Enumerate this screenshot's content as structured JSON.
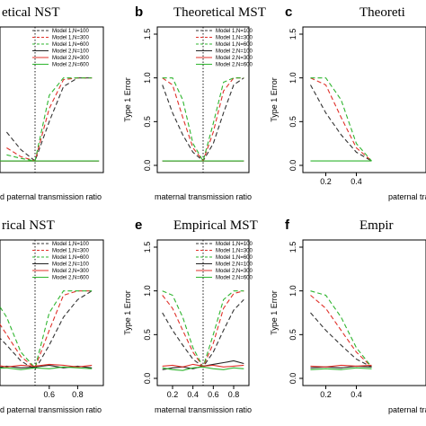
{
  "colors": {
    "model1_n100": "#333333",
    "model1_n300": "#e0312a",
    "model1_n600": "#2fb52f",
    "model2_n100": "#222222",
    "model2_n300": "#e0312a",
    "model2_n600": "#2fb52f"
  },
  "chart_data": [
    {
      "type": "line",
      "letter": "",
      "title": "etical NST",
      "xlabel": "d paternal transmission ratio",
      "ylabel": "",
      "xlim": [
        0.0,
        1.0
      ],
      "ylim": [
        0.0,
        1.5
      ],
      "x_ticks": [],
      "y_ticks": [],
      "vline": 0.5,
      "legend_position": "top-right",
      "series": [
        {
          "name": "Model 1,N=100",
          "style": "dashed",
          "color": "model1_n100",
          "x": [
            0.3,
            0.4,
            0.5,
            0.6,
            0.7,
            0.8,
            0.9
          ],
          "y": [
            0.38,
            0.18,
            0.05,
            0.5,
            0.9,
            1.0,
            1.0
          ]
        },
        {
          "name": "Model 1,N=300",
          "style": "dashed",
          "color": "model1_n300",
          "x": [
            0.3,
            0.4,
            0.5,
            0.6,
            0.7,
            0.8,
            0.9
          ],
          "y": [
            0.2,
            0.1,
            0.05,
            0.65,
            0.98,
            1.0,
            1.0
          ]
        },
        {
          "name": "Model 1,N=600",
          "style": "dashed",
          "color": "model1_n600",
          "x": [
            0.3,
            0.4,
            0.5,
            0.6,
            0.7,
            0.8,
            0.9
          ],
          "y": [
            0.12,
            0.08,
            0.05,
            0.8,
            1.0,
            1.0,
            1.0
          ]
        },
        {
          "name": "Model 2,N=100",
          "style": "solid",
          "color": "model2_n100",
          "x": [
            0.0,
            0.95
          ],
          "y": [
            0.05,
            0.05
          ]
        },
        {
          "name": "Model 2,N=300",
          "style": "solid",
          "color": "model2_n300",
          "x": [
            0.0,
            0.95
          ],
          "y": [
            0.05,
            0.05
          ]
        },
        {
          "name": "Model 2,N=600",
          "style": "solid",
          "color": "model2_n600",
          "x": [
            0.0,
            0.95
          ],
          "y": [
            0.05,
            0.05
          ]
        }
      ]
    },
    {
      "type": "line",
      "letter": "b",
      "title": "Theoretical MST",
      "xlabel": "maternal transmission ratio",
      "ylabel": "Type 1 Error",
      "xlim": [
        0.05,
        0.95
      ],
      "ylim": [
        0.0,
        1.5
      ],
      "x_ticks": [],
      "y_ticks": [
        0.0,
        0.5,
        1.0,
        1.5
      ],
      "vline": 0.5,
      "legend_position": "top-right",
      "series": [
        {
          "name": "Model 1,N=100",
          "style": "dashed",
          "color": "model1_n100",
          "x": [
            0.1,
            0.2,
            0.3,
            0.4,
            0.5,
            0.6,
            0.7,
            0.8,
            0.9
          ],
          "y": [
            0.92,
            0.6,
            0.35,
            0.15,
            0.05,
            0.25,
            0.6,
            0.92,
            1.0
          ]
        },
        {
          "name": "Model 1,N=300",
          "style": "dashed",
          "color": "model1_n300",
          "x": [
            0.1,
            0.2,
            0.3,
            0.4,
            0.5,
            0.6,
            0.7,
            0.8,
            0.9
          ],
          "y": [
            1.0,
            0.92,
            0.55,
            0.2,
            0.05,
            0.38,
            0.85,
            1.0,
            1.0
          ]
        },
        {
          "name": "Model 1,N=600",
          "style": "dashed",
          "color": "model1_n600",
          "x": [
            0.1,
            0.2,
            0.3,
            0.4,
            0.5,
            0.6,
            0.7,
            0.8,
            0.9
          ],
          "y": [
            1.0,
            1.0,
            0.75,
            0.25,
            0.05,
            0.48,
            0.95,
            1.0,
            1.0
          ]
        },
        {
          "name": "Model 2,N=100",
          "style": "solid",
          "color": "model2_n100",
          "x": [
            0.1,
            0.9
          ],
          "y": [
            0.05,
            0.05
          ]
        },
        {
          "name": "Model 2,N=300",
          "style": "solid",
          "color": "model2_n300",
          "x": [
            0.1,
            0.9
          ],
          "y": [
            0.05,
            0.05
          ]
        },
        {
          "name": "Model 2,N=600",
          "style": "solid",
          "color": "model2_n600",
          "x": [
            0.1,
            0.9
          ],
          "y": [
            0.05,
            0.05
          ]
        }
      ]
    },
    {
      "type": "line",
      "letter": "c",
      "title": "Theoreti",
      "xlabel": "paternal tra",
      "ylabel": "Type 1 Error",
      "xlim": [
        0.05,
        0.95
      ],
      "ylim": [
        0.0,
        1.5
      ],
      "x_ticks": [
        0.2,
        0.4
      ],
      "y_ticks": [
        0.0,
        0.5,
        1.0,
        1.5
      ],
      "vline": null,
      "legend_position": "",
      "series": [
        {
          "name": "",
          "style": "dashed",
          "color": "model1_n100",
          "x": [
            0.1,
            0.2,
            0.3,
            0.4,
            0.5
          ],
          "y": [
            0.92,
            0.6,
            0.35,
            0.15,
            0.05
          ]
        },
        {
          "name": "",
          "style": "dashed",
          "color": "model1_n300",
          "x": [
            0.1,
            0.2,
            0.3,
            0.4,
            0.5
          ],
          "y": [
            1.0,
            0.92,
            0.55,
            0.2,
            0.05
          ]
        },
        {
          "name": "",
          "style": "dashed",
          "color": "model1_n600",
          "x": [
            0.1,
            0.2,
            0.3,
            0.4,
            0.5
          ],
          "y": [
            1.0,
            1.0,
            0.75,
            0.25,
            0.05
          ]
        },
        {
          "name": "",
          "style": "solid",
          "color": "model2_n600",
          "x": [
            0.1,
            0.5
          ],
          "y": [
            0.05,
            0.05
          ]
        }
      ]
    },
    {
      "type": "line",
      "letter": "",
      "title": "rical NST",
      "xlabel": "d paternal transmission ratio",
      "ylabel": "",
      "xlim": [
        0.0,
        1.0
      ],
      "ylim": [
        0.0,
        1.5
      ],
      "x_ticks": [
        0.6,
        0.8
      ],
      "y_ticks": [],
      "vline": 0.5,
      "legend_position": "top-right",
      "series": [
        {
          "name": "Model 1,N=100",
          "style": "dashed",
          "color": "model1_n100",
          "x": [
            0.0,
            0.1,
            0.2,
            0.3,
            0.4,
            0.5,
            0.6,
            0.7,
            0.8,
            0.9
          ],
          "y": [
            0.9,
            0.75,
            0.55,
            0.38,
            0.2,
            0.1,
            0.38,
            0.7,
            0.9,
            1.0
          ]
        },
        {
          "name": "Model 1,N=300",
          "style": "dashed",
          "color": "model1_n300",
          "x": [
            0.0,
            0.1,
            0.2,
            0.3,
            0.4,
            0.5,
            0.6,
            0.7,
            0.8,
            0.9
          ],
          "y": [
            1.0,
            0.95,
            0.75,
            0.5,
            0.25,
            0.12,
            0.55,
            0.95,
            1.0,
            1.0
          ]
        },
        {
          "name": "Model 1,N=600",
          "style": "dashed",
          "color": "model1_n600",
          "x": [
            0.0,
            0.1,
            0.2,
            0.3,
            0.4,
            0.5,
            0.6,
            0.7,
            0.8,
            0.9
          ],
          "y": [
            1.0,
            1.0,
            0.95,
            0.7,
            0.3,
            0.12,
            0.75,
            1.0,
            1.0,
            1.0
          ]
        },
        {
          "name": "Model 2,N=100",
          "style": "solid",
          "color": "model2_n100",
          "x": [
            0.0,
            0.1,
            0.2,
            0.3,
            0.4,
            0.5,
            0.6,
            0.7,
            0.8,
            0.9
          ],
          "y": [
            0.12,
            0.13,
            0.11,
            0.14,
            0.12,
            0.13,
            0.15,
            0.12,
            0.14,
            0.12
          ]
        },
        {
          "name": "Model 2,N=300",
          "style": "solid",
          "color": "model2_n300",
          "x": [
            0.0,
            0.1,
            0.2,
            0.3,
            0.4,
            0.5,
            0.6,
            0.7,
            0.8,
            0.9
          ],
          "y": [
            0.15,
            0.14,
            0.16,
            0.13,
            0.15,
            0.14,
            0.16,
            0.15,
            0.13,
            0.15
          ]
        },
        {
          "name": "Model 2,N=600",
          "style": "solid",
          "color": "model2_n600",
          "x": [
            0.0,
            0.1,
            0.2,
            0.3,
            0.4,
            0.5,
            0.6,
            0.7,
            0.8,
            0.9
          ],
          "y": [
            0.1,
            0.12,
            0.11,
            0.12,
            0.1,
            0.12,
            0.11,
            0.13,
            0.12,
            0.11
          ]
        }
      ]
    },
    {
      "type": "line",
      "letter": "e",
      "title": "Empirical  MST",
      "xlabel": "maternal transmission ratio",
      "ylabel": "Type 1 Error",
      "xlim": [
        0.05,
        0.95
      ],
      "ylim": [
        0.0,
        1.5
      ],
      "x_ticks": [
        0.2,
        0.4,
        0.6,
        0.8
      ],
      "y_ticks": [
        0.0,
        0.5,
        1.0,
        1.5
      ],
      "vline": 0.5,
      "legend_position": "top-right",
      "series": [
        {
          "name": "Model 1,N=100",
          "style": "dashed",
          "color": "model1_n100",
          "x": [
            0.1,
            0.2,
            0.3,
            0.4,
            0.5,
            0.6,
            0.7,
            0.8,
            0.9
          ],
          "y": [
            0.75,
            0.55,
            0.38,
            0.22,
            0.13,
            0.3,
            0.55,
            0.78,
            0.9
          ]
        },
        {
          "name": "Model 1,N=300",
          "style": "dashed",
          "color": "model1_n300",
          "x": [
            0.1,
            0.2,
            0.3,
            0.4,
            0.5,
            0.6,
            0.7,
            0.8,
            0.9
          ],
          "y": [
            0.95,
            0.8,
            0.55,
            0.3,
            0.13,
            0.4,
            0.8,
            0.97,
            1.0
          ]
        },
        {
          "name": "Model 1,N=600",
          "style": "dashed",
          "color": "model1_n600",
          "x": [
            0.1,
            0.2,
            0.3,
            0.4,
            0.5,
            0.6,
            0.7,
            0.8,
            0.9
          ],
          "y": [
            1.0,
            0.95,
            0.7,
            0.35,
            0.13,
            0.5,
            0.9,
            1.0,
            1.0
          ]
        },
        {
          "name": "Model 2,N=100",
          "style": "solid",
          "color": "model2_n100",
          "x": [
            0.1,
            0.2,
            0.3,
            0.4,
            0.5,
            0.6,
            0.7,
            0.8,
            0.9
          ],
          "y": [
            0.1,
            0.12,
            0.13,
            0.11,
            0.14,
            0.16,
            0.18,
            0.2,
            0.17
          ]
        },
        {
          "name": "Model 2,N=300",
          "style": "solid",
          "color": "model2_n300",
          "x": [
            0.1,
            0.2,
            0.3,
            0.4,
            0.5,
            0.6,
            0.7,
            0.8,
            0.9
          ],
          "y": [
            0.14,
            0.15,
            0.13,
            0.16,
            0.14,
            0.15,
            0.13,
            0.14,
            0.15
          ]
        },
        {
          "name": "Model 2,N=600",
          "style": "solid",
          "color": "model2_n600",
          "x": [
            0.1,
            0.2,
            0.3,
            0.4,
            0.5,
            0.6,
            0.7,
            0.8,
            0.9
          ],
          "y": [
            0.12,
            0.1,
            0.09,
            0.12,
            0.13,
            0.11,
            0.1,
            0.12,
            0.11
          ]
        }
      ]
    },
    {
      "type": "line",
      "letter": "f",
      "title": "Empir",
      "xlabel": "paternal tra",
      "ylabel": "Type 1 Error",
      "xlim": [
        0.05,
        0.95
      ],
      "ylim": [
        0.0,
        1.5
      ],
      "x_ticks": [
        0.2,
        0.4
      ],
      "y_ticks": [
        0.0,
        0.5,
        1.0,
        1.5
      ],
      "vline": null,
      "legend_position": "",
      "series": [
        {
          "name": "",
          "style": "dashed",
          "color": "model1_n100",
          "x": [
            0.1,
            0.2,
            0.3,
            0.4,
            0.5
          ],
          "y": [
            0.75,
            0.55,
            0.38,
            0.22,
            0.13
          ]
        },
        {
          "name": "",
          "style": "dashed",
          "color": "model1_n300",
          "x": [
            0.1,
            0.2,
            0.3,
            0.4,
            0.5
          ],
          "y": [
            0.95,
            0.8,
            0.55,
            0.3,
            0.13
          ]
        },
        {
          "name": "",
          "style": "dashed",
          "color": "model1_n600",
          "x": [
            0.1,
            0.2,
            0.3,
            0.4,
            0.5
          ],
          "y": [
            1.0,
            0.95,
            0.7,
            0.35,
            0.13
          ]
        },
        {
          "name": "",
          "style": "solid",
          "color": "model2_n100",
          "x": [
            0.1,
            0.2,
            0.3,
            0.4,
            0.5
          ],
          "y": [
            0.12,
            0.13,
            0.12,
            0.14,
            0.13
          ]
        },
        {
          "name": "",
          "style": "solid",
          "color": "model2_n300",
          "x": [
            0.1,
            0.2,
            0.3,
            0.4,
            0.5
          ],
          "y": [
            0.14,
            0.13,
            0.15,
            0.14,
            0.15
          ]
        },
        {
          "name": "",
          "style": "solid",
          "color": "model2_n600",
          "x": [
            0.1,
            0.2,
            0.3,
            0.4,
            0.5
          ],
          "y": [
            0.1,
            0.11,
            0.1,
            0.12,
            0.11
          ]
        }
      ]
    }
  ]
}
